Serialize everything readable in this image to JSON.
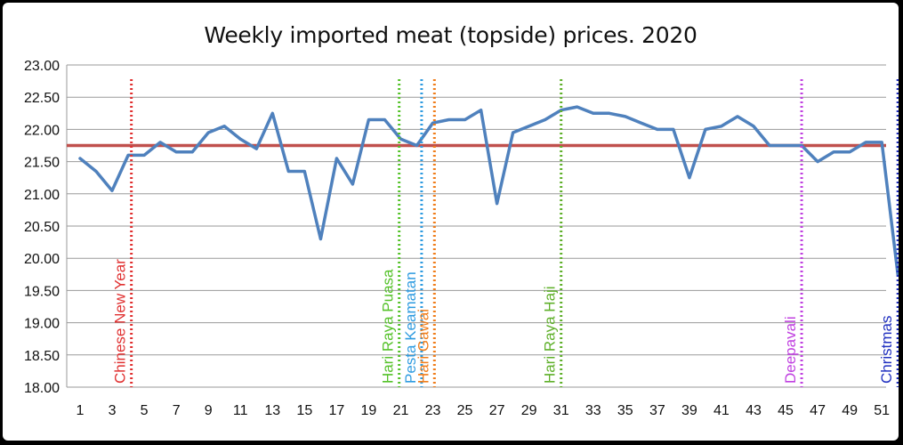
{
  "chart_data": {
    "type": "line",
    "title": "Weekly imported meat (topside) prices. 2020",
    "xlabel": "",
    "ylabel": "",
    "ylim": [
      18.0,
      23.0
    ],
    "yticks": [
      "18.00",
      "18.50",
      "19.00",
      "19.50",
      "20.00",
      "20.50",
      "21.00",
      "21.50",
      "22.00",
      "22.50",
      "23.00"
    ],
    "xticks": [
      1,
      3,
      5,
      7,
      9,
      11,
      13,
      15,
      17,
      19,
      21,
      23,
      25,
      27,
      29,
      31,
      33,
      35,
      37,
      39,
      41,
      43,
      45,
      47,
      49,
      51
    ],
    "grid": true,
    "series": [
      {
        "color": "#4F81BD",
        "x": [
          1,
          2,
          3,
          4,
          5,
          6,
          7,
          8,
          9,
          10,
          11,
          12,
          13,
          14,
          15,
          16,
          17,
          18,
          19,
          20,
          21,
          22,
          23,
          24,
          25,
          26,
          27,
          28,
          29,
          30,
          31,
          32,
          33,
          34,
          35,
          36,
          37,
          38,
          39,
          40,
          41,
          42,
          43,
          44,
          45,
          46,
          47,
          48,
          49,
          50,
          51,
          52
        ],
        "values": [
          21.55,
          21.35,
          21.05,
          21.6,
          21.6,
          21.8,
          21.65,
          21.65,
          21.95,
          22.05,
          21.85,
          21.7,
          22.25,
          21.35,
          21.35,
          20.3,
          21.55,
          21.15,
          22.15,
          22.15,
          21.85,
          21.75,
          22.1,
          22.15,
          22.15,
          22.3,
          20.85,
          21.95,
          22.05,
          22.15,
          22.3,
          22.35,
          22.25,
          22.25,
          22.2,
          22.1,
          22.0,
          22.0,
          21.25,
          22.0,
          22.05,
          22.2,
          22.05,
          21.75,
          21.75,
          21.75,
          21.5,
          21.65,
          21.65,
          21.8,
          21.8,
          19.75
        ]
      }
    ],
    "reference_line": {
      "value": 21.75,
      "color": "#C0504D"
    },
    "events": [
      {
        "label": "Chinese New Year",
        "x": 4.2,
        "color": "#E03030"
      },
      {
        "label": "Hari Raya Puasa",
        "x": 20.9,
        "color": "#55C22A"
      },
      {
        "label": "Pesta Keamatan",
        "x": 22.3,
        "color": "#2E9BE0"
      },
      {
        "label": "Hari Gawai",
        "x": 23.1,
        "color": "#F07D1A"
      },
      {
        "label": "Hari Raya Haji",
        "x": 31.0,
        "color": "#5FB02A"
      },
      {
        "label": "Deepavali",
        "x": 46.0,
        "color": "#C040E0"
      },
      {
        "label": "Christmas",
        "x": 52.0,
        "color": "#2030C0"
      }
    ]
  }
}
